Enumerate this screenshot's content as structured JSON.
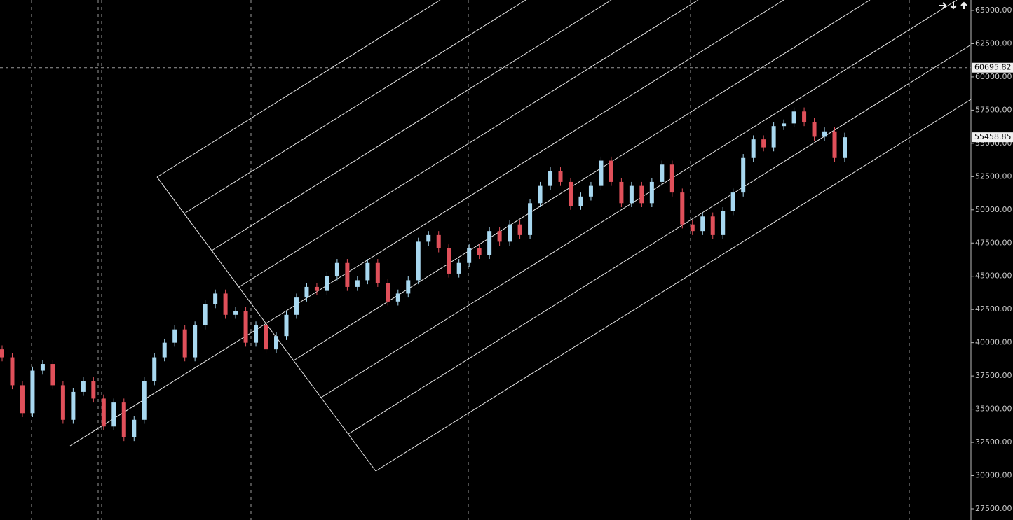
{
  "chart_data": {
    "type": "candlestick",
    "up_color": "#a8d8f0",
    "down_color": "#e0505a",
    "ylim": [
      26657,
      65790
    ],
    "yticks": [
      {
        "value": 27500,
        "label": "27500.00"
      },
      {
        "value": 30000,
        "label": "30000.00"
      },
      {
        "value": 32500,
        "label": "32500.00"
      },
      {
        "value": 35000,
        "label": "35000.00"
      },
      {
        "value": 37500,
        "label": "37500.00"
      },
      {
        "value": 40000,
        "label": "40000.00"
      },
      {
        "value": 42500,
        "label": "42500.00"
      },
      {
        "value": 45000,
        "label": "45000.00"
      },
      {
        "value": 47500,
        "label": "47500.00"
      },
      {
        "value": 50000,
        "label": "50000.00"
      },
      {
        "value": 52500,
        "label": "52500.00"
      },
      {
        "value": 55000,
        "label": "55000.00"
      },
      {
        "value": 57500,
        "label": "57500.00"
      },
      {
        "value": 60000,
        "label": "60000.00"
      },
      {
        "value": 62500,
        "label": "62500.00"
      },
      {
        "value": 65000,
        "label": "65000.00"
      }
    ],
    "crosshair_price": 60695.82,
    "last_price": 55458.85,
    "open": [
      39500,
      38900,
      36800,
      34700,
      37900,
      38400,
      36800,
      34200,
      36300,
      37100,
      35800,
      33700,
      35500,
      32900,
      34200,
      37100,
      38900,
      40000,
      41000,
      38900,
      41300,
      42900,
      43700,
      42100,
      42400,
      40000,
      41300,
      39500,
      40500,
      42100,
      43400,
      44200,
      43900,
      45000,
      46000,
      44200,
      44700,
      46000,
      44500,
      43100,
      43700,
      44700,
      47600,
      48100,
      47100,
      45200,
      46000,
      47100,
      46600,
      48400,
      47600,
      48900,
      48100,
      50500,
      51800,
      52900,
      52100,
      50300,
      51000,
      51800,
      53700,
      52100,
      50500,
      51800,
      50500,
      52100,
      53400,
      51300,
      48900,
      48400,
      49500,
      48100,
      49900,
      51300,
      53900,
      55300,
      54700,
      56300,
      56500,
      57400,
      56600,
      55500,
      55900,
      53900
    ],
    "high": [
      39800,
      39200,
      37100,
      38200,
      38700,
      38700,
      37100,
      36600,
      37400,
      37400,
      36100,
      35800,
      35800,
      34500,
      37400,
      39200,
      40300,
      41300,
      41300,
      41600,
      43200,
      44000,
      44000,
      42700,
      42700,
      41600,
      41600,
      40800,
      42400,
      43700,
      44500,
      44500,
      45300,
      46300,
      46300,
      45000,
      46300,
      46300,
      44800,
      44000,
      45000,
      47900,
      48400,
      48400,
      47400,
      46300,
      47400,
      47400,
      48700,
      48700,
      49200,
      49200,
      50800,
      52100,
      53200,
      53200,
      52400,
      51300,
      52100,
      54000,
      54000,
      52400,
      52100,
      52100,
      52400,
      53700,
      53700,
      51600,
      49200,
      49800,
      49800,
      50200,
      51600,
      54200,
      55600,
      55600,
      56600,
      56800,
      57700,
      57700,
      56900,
      56200,
      56200,
      55800
    ],
    "low": [
      38600,
      36500,
      34400,
      34400,
      37600,
      36500,
      33900,
      33900,
      36000,
      35500,
      33400,
      33400,
      32600,
      32600,
      33900,
      36800,
      38600,
      39700,
      38600,
      38600,
      41000,
      42600,
      41800,
      41800,
      39700,
      39700,
      39200,
      39200,
      40200,
      41800,
      43100,
      43600,
      43600,
      44700,
      43900,
      43900,
      44400,
      44200,
      42800,
      42800,
      43400,
      44400,
      47300,
      46800,
      44900,
      44900,
      45700,
      46300,
      46300,
      47300,
      47300,
      47800,
      47800,
      50200,
      51500,
      51800,
      50000,
      50000,
      50700,
      51500,
      51800,
      50200,
      50200,
      50200,
      50200,
      51800,
      51000,
      48600,
      48100,
      48100,
      47800,
      47800,
      49600,
      51000,
      53600,
      54400,
      54400,
      56000,
      56200,
      56300,
      55200,
      55200,
      53600,
      53600
    ],
    "close": [
      38900,
      36800,
      34700,
      37900,
      38400,
      36800,
      34200,
      36300,
      37100,
      35800,
      33700,
      35500,
      32900,
      34200,
      37100,
      38900,
      40000,
      41000,
      38900,
      41300,
      42900,
      43700,
      42100,
      42400,
      40000,
      41300,
      39500,
      40500,
      42100,
      43400,
      44200,
      43900,
      45000,
      46000,
      44200,
      44700,
      46000,
      44500,
      43100,
      43700,
      44700,
      47600,
      48100,
      47100,
      45200,
      46000,
      47100,
      46600,
      48400,
      47600,
      48900,
      48100,
      50500,
      51800,
      52900,
      52100,
      50300,
      51000,
      51800,
      53700,
      52100,
      50500,
      51800,
      50500,
      52100,
      53400,
      51300,
      48900,
      48400,
      49500,
      48100,
      49900,
      51300,
      53900,
      55300,
      54700,
      56300,
      56500,
      57400,
      56600,
      55500,
      55900,
      53900,
      55458.85
    ]
  }
}
